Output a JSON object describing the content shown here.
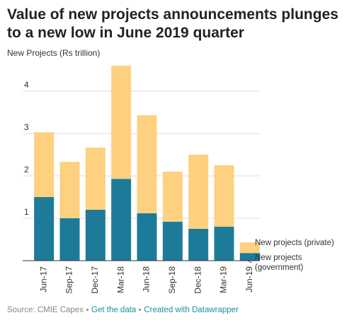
{
  "chart_data": {
    "type": "stacked_bar",
    "title": "Value of new projects announcements plunges to a new low in June 2019 quarter",
    "y_axis_label": "New Projects (Rs trillion)",
    "categories": [
      "Jun-17",
      "Sep-17",
      "Dec-17",
      "Mar-18",
      "Jun-18",
      "Sep-18",
      "Dec-18",
      "Mar-19",
      "Jun-19"
    ],
    "series": [
      {
        "name": "New projects (government)",
        "color": "#1d7b99",
        "values": [
          1.5,
          1.0,
          1.2,
          1.93,
          1.12,
          0.92,
          0.75,
          0.8,
          0.18
        ]
      },
      {
        "name": "New projects (private)",
        "color": "#fdd17f",
        "values": [
          1.53,
          1.33,
          1.47,
          2.67,
          2.31,
          1.18,
          1.75,
          1.45,
          0.25
        ]
      }
    ],
    "ylim": [
      0,
      4.7
    ],
    "yticks": [
      0,
      1,
      2,
      3,
      4
    ],
    "grid": true,
    "footer": {
      "source": "Source: CMIE Capex",
      "links": [
        "Get the data",
        "Created with Datawrapper"
      ]
    }
  }
}
